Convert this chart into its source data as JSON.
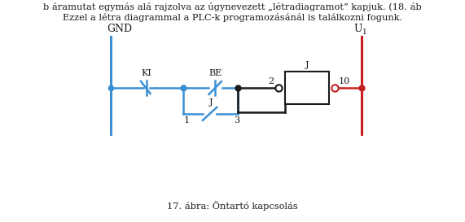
{
  "bg_color": "#ffffff",
  "blue_color": "#3B8FD4",
  "red_color": "#C42020",
  "black_color": "#1a1a1a",
  "figsize": [
    5.71,
    2.73
  ],
  "dpi": 100,
  "text_top1": "b áramutat egymás alá rajzolva az úgynevezett „létradiagramot” kapjuk. (18. áb",
  "text_top2": "Ezzel a létra diagrammal a PLC-k programozásánál is találkozni fogunk.",
  "text_caption": "17. ábra: Öntartó kapcsolás",
  "label_GND": "GND",
  "label_U": "U",
  "label_U_sub": "1",
  "label_KI": "KI",
  "label_BE": "BE",
  "label_J_coil": "J",
  "label_J_sw": "J",
  "label_2": "2",
  "label_10": "10",
  "label_1": "1",
  "label_3": "3"
}
